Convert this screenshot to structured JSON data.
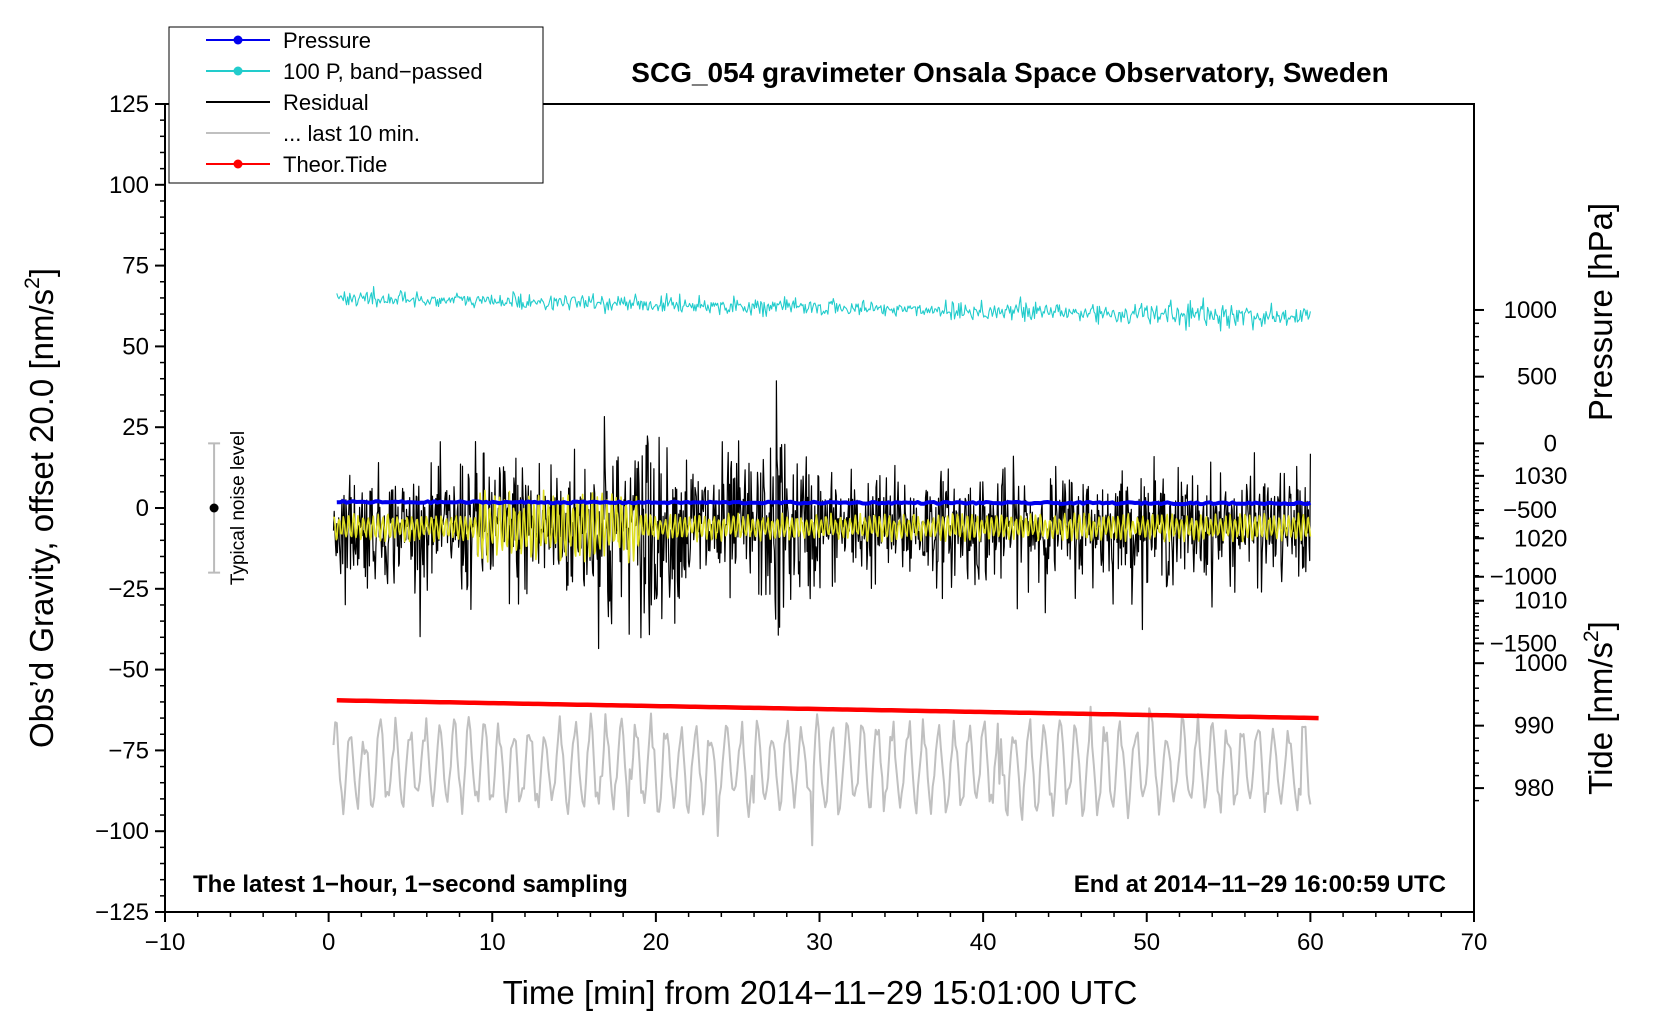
{
  "chart_data": {
    "type": "line",
    "title": "SCG_054 gravimeter Onsala Space Observatory, Sweden",
    "xlabel": "Time [min] from 2014−11−29 15:01:00 UTC",
    "ylabel": "Obs’d Gravity, offset 20.0 [nm/s",
    "ylabel_sup": "2",
    "ylabel_end": "]",
    "right_labels": {
      "pressure": "Pressure [hPa]",
      "tide": "Tide [nm/s",
      "tide_sup": "2",
      "tide_end": "]"
    },
    "xlim": [
      -10,
      70
    ],
    "ylim": [
      -125,
      125
    ],
    "x_ticks": [
      -10,
      0,
      10,
      20,
      30,
      40,
      50,
      60,
      70
    ],
    "x_tick_labels": [
      "−10",
      "0",
      "10",
      "20",
      "30",
      "40",
      "50",
      "60",
      "70"
    ],
    "y_ticks": [
      125,
      100,
      75,
      50,
      25,
      0,
      -25,
      -50,
      -75,
      -100,
      -125
    ],
    "y_tick_labels": [
      "125",
      "100",
      "75",
      "50",
      "25",
      "0",
      "−25",
      "−50",
      "−75",
      "−100",
      "−125"
    ],
    "pressure_axis": {
      "ticks": [
        1030,
        1020,
        1010,
        1000,
        990,
        980
      ],
      "tick_labels": [
        "1030",
        "1020",
        "1010",
        "1000",
        "990",
        "980"
      ],
      "left_value_at": [
        20,
        1035.2
      ],
      "pressure_per_left_unit": 0.5175
    },
    "tide_axis": {
      "ticks": [
        1000,
        500,
        0,
        -500,
        -1000,
        -1500
      ],
      "tick_labels": [
        "1000",
        "500",
        "0",
        "−500",
        "−1000",
        "−1500"
      ],
      "left_value_at": [
        20,
        0
      ],
      "tide_per_left_unit": 24.23
    },
    "series": [
      {
        "name": "Pressure",
        "color": "#0000ee",
        "style": "thick-line",
        "x_range": [
          0.5,
          60
        ],
        "pressure_start": 1025.8,
        "pressure_end": 1025.6,
        "noise": 0.3
      },
      {
        "name": "100 P, band−passed",
        "color": "#22cccc",
        "style": "noisy-line",
        "x_range": [
          0.5,
          60
        ],
        "start": 65,
        "end": 59,
        "amplitude": 2.0
      },
      {
        "name": "Residual",
        "color": "#000000",
        "style": "noisy-line",
        "x_range": [
          0.3,
          60
        ],
        "baseline": -6,
        "amplitude": 12,
        "bursts": [
          {
            "at": 17,
            "extra": 20
          },
          {
            "at": 19.5,
            "extra": 26
          },
          {
            "at": 27.5,
            "extra": 15
          }
        ]
      },
      {
        "name": "... last 10 min.",
        "color": "#c0c0c0",
        "style": "noisy-line",
        "x_range": [
          0.3,
          60
        ],
        "baseline": -80,
        "amplitude": 12
      },
      {
        "name": "Theor.Tide",
        "color": "#ff0000",
        "style": "thick-line",
        "x_range": [
          0.5,
          60.5
        ],
        "start": -59.5,
        "end": -65
      }
    ],
    "residual_filtered": {
      "color": "#dddd22",
      "baseline": -6,
      "amplitude": 3,
      "x_range": [
        0.3,
        60
      ]
    },
    "noise_bar": {
      "label": "Typical noise level",
      "x": -7,
      "center": 0,
      "half_range": 20
    },
    "annotations": {
      "left": "The latest 1−hour, 1−second sampling",
      "right": "End at 2014−11−29 16:00:59 UTC"
    },
    "legend": {
      "placement": "top-left",
      "entries": [
        {
          "label": "Pressure",
          "color": "#0000ee",
          "marker": true
        },
        {
          "label": "100 P, band−passed",
          "color": "#22cccc",
          "marker": true
        },
        {
          "label": "Residual",
          "color": "#000000",
          "marker": false
        },
        {
          "label": "... last 10 min.",
          "color": "#c0c0c0",
          "marker": false
        },
        {
          "label": "Theor.Tide",
          "color": "#ff0000",
          "marker": true
        }
      ]
    }
  }
}
